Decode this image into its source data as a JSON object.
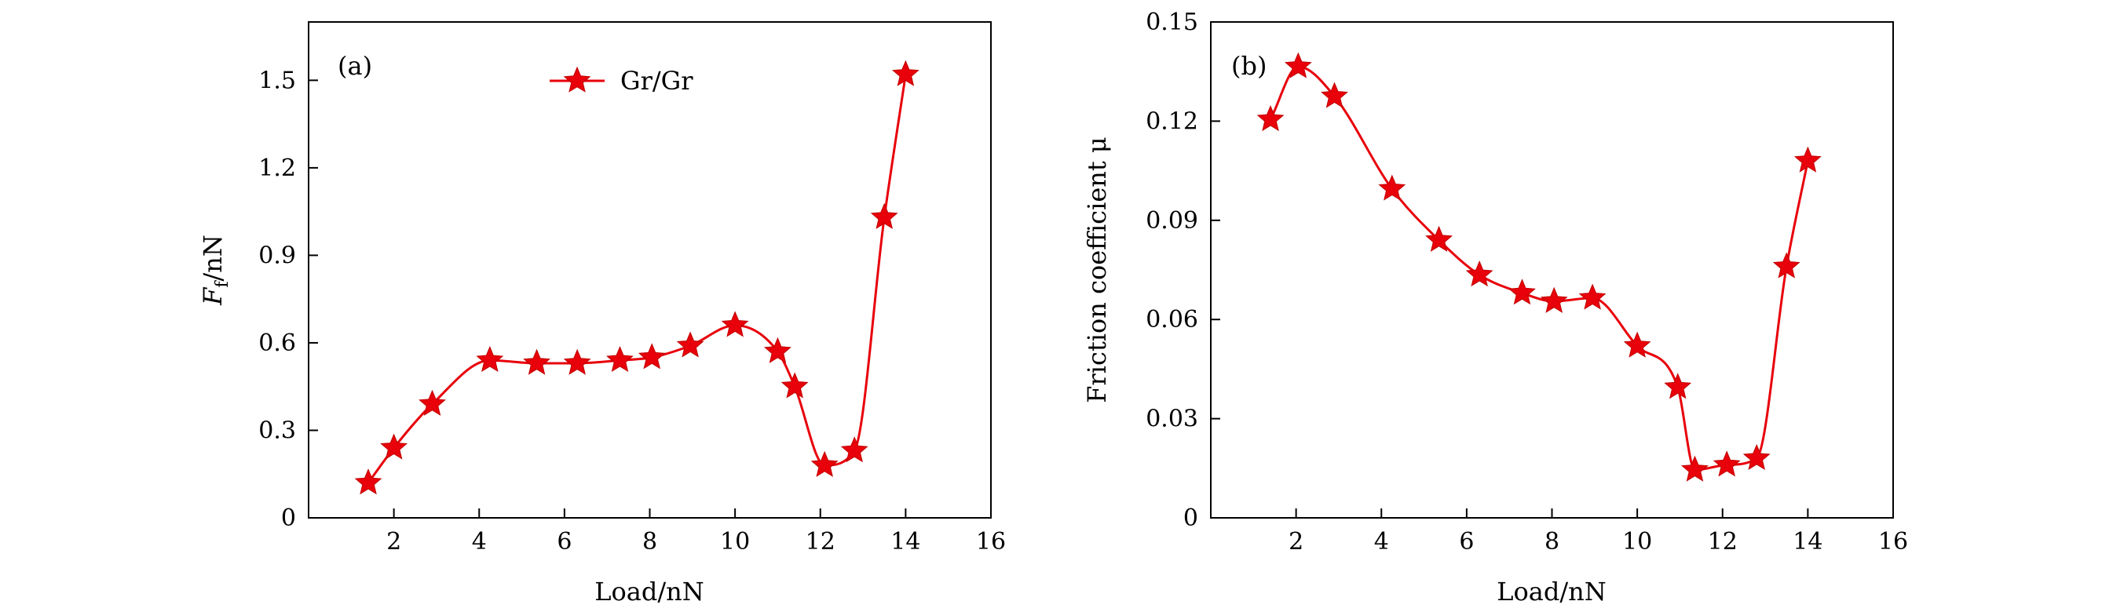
{
  "chart_data": [
    {
      "type": "line",
      "panel_label": "(a)",
      "xlabel": "Load/nN",
      "ylabel_main": "F",
      "ylabel_sub": "f",
      "ylabel_unit": "/nN",
      "xlim": [
        0,
        16
      ],
      "ylim": [
        0,
        1.7
      ],
      "xticks": [
        2,
        4,
        6,
        8,
        10,
        12,
        14,
        16
      ],
      "yticks": [
        0,
        0.3,
        0.6,
        0.9,
        1.2,
        1.5
      ],
      "xtick_labels": [
        "2",
        "4",
        "6",
        "8",
        "10",
        "12",
        "14",
        "16"
      ],
      "ytick_labels": [
        "0",
        "0.3",
        "0.6",
        "0.9",
        "1.2",
        "1.5"
      ],
      "grid": false,
      "legend": {
        "placement": "top-center",
        "entries": [
          "Gr/Gr"
        ]
      },
      "series": [
        {
          "name": "Gr/Gr",
          "color": "#e8000b",
          "marker": "star",
          "x": [
            1.4,
            2.0,
            2.9,
            4.25,
            5.35,
            6.3,
            7.3,
            8.05,
            8.95,
            10.0,
            11.0,
            11.4,
            12.1,
            12.8,
            13.5,
            14.0
          ],
          "y": [
            0.12,
            0.24,
            0.39,
            0.54,
            0.53,
            0.53,
            0.54,
            0.55,
            0.59,
            0.66,
            0.57,
            0.45,
            0.18,
            0.23,
            1.03,
            1.52
          ]
        }
      ]
    },
    {
      "type": "line",
      "panel_label": "(b)",
      "xlabel": "Load/nN",
      "ylabel_main": "Friction coefficient μ",
      "xlim": [
        0,
        16
      ],
      "ylim": [
        0,
        0.15
      ],
      "xticks": [
        2,
        4,
        6,
        8,
        10,
        12,
        14,
        16
      ],
      "yticks": [
        0,
        0.03,
        0.06,
        0.09,
        0.12,
        0.15
      ],
      "xtick_labels": [
        "2",
        "4",
        "6",
        "8",
        "10",
        "12",
        "14",
        "16"
      ],
      "ytick_labels": [
        "0",
        "0.03",
        "0.06",
        "0.09",
        "0.12",
        "0.15"
      ],
      "grid": false,
      "series": [
        {
          "color": "#e8000b",
          "marker": "star",
          "x": [
            1.4,
            2.05,
            2.9,
            4.25,
            5.35,
            6.3,
            7.3,
            8.05,
            8.95,
            10.0,
            10.95,
            11.35,
            12.1,
            12.8,
            13.5,
            14.0
          ],
          "y": [
            0.1205,
            0.1365,
            0.1275,
            0.0995,
            0.084,
            0.0735,
            0.068,
            0.0655,
            0.0665,
            0.052,
            0.0395,
            0.0145,
            0.016,
            0.018,
            0.076,
            0.108
          ]
        }
      ]
    }
  ]
}
